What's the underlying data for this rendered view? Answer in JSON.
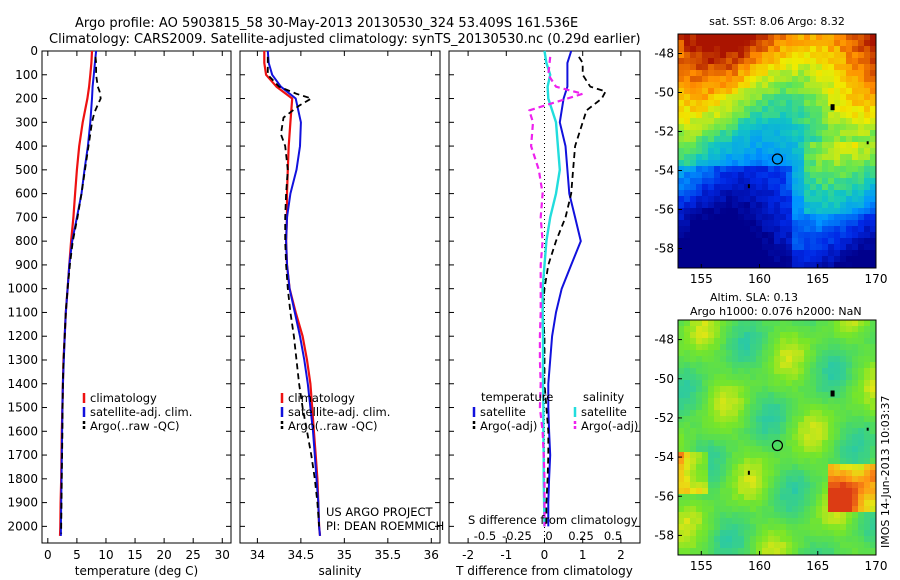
{
  "header": {
    "title_line1": "Argo profile: AO 5903815_58 30-May-2013 20130530_324 53.409S 161.536E",
    "title_line2": "Climatology: CARS2009. Satellite-adjusted climatology: synTS_20130530.nc (0.29d earlier)"
  },
  "colors": {
    "climatology": "#ee1111",
    "satellite": "#1111dd",
    "argo": "#000000",
    "sal_satellite": "#22dddd",
    "sal_argo": "#ee22ee"
  },
  "chart_data": [
    {
      "type": "line",
      "id": "temperature",
      "xlabel": "temperature (deg C)",
      "xlim": [
        -1,
        31.5
      ],
      "xticks": [
        0,
        5,
        10,
        15,
        20,
        25,
        30
      ],
      "ylim": [
        2070,
        0
      ],
      "yticks": [
        0,
        100,
        200,
        300,
        400,
        500,
        600,
        700,
        800,
        900,
        1000,
        1100,
        1200,
        1300,
        1400,
        1500,
        1600,
        1700,
        1800,
        1900,
        2000
      ],
      "legend": [
        "climatology",
        "satellite-adj. clim.",
        "Argo(..raw -QC)"
      ],
      "series": [
        {
          "name": "climatology",
          "depth": [
            0,
            50,
            100,
            150,
            200,
            300,
            400,
            500,
            600,
            700,
            800,
            900,
            1000,
            1100,
            1200,
            1300,
            1400,
            1500,
            1600,
            1700,
            1800,
            1900,
            2000,
            2040
          ],
          "values": [
            7.6,
            7.5,
            7.3,
            7.1,
            6.8,
            6.0,
            5.4,
            5.0,
            4.7,
            4.4,
            4.0,
            3.7,
            3.4,
            3.1,
            2.9,
            2.7,
            2.6,
            2.5,
            2.4,
            2.35,
            2.3,
            2.2,
            2.15,
            2.1
          ]
        },
        {
          "name": "satellite-adj. clim.",
          "depth": [
            0,
            50,
            100,
            150,
            200,
            300,
            400,
            500,
            600,
            700,
            800,
            900,
            1000,
            1100,
            1200,
            1300,
            1400,
            1500,
            1600,
            1700,
            1800,
            1900,
            2000,
            2040
          ],
          "values": [
            8.3,
            8.1,
            7.9,
            7.7,
            7.6,
            7.3,
            6.9,
            6.3,
            5.8,
            5.0,
            4.2,
            3.7,
            3.4,
            3.1,
            2.9,
            2.75,
            2.6,
            2.5,
            2.45,
            2.4,
            2.35,
            2.3,
            2.25,
            2.25
          ]
        },
        {
          "name": "Argo(..raw -QC)",
          "depth": [
            25,
            50,
            100,
            150,
            170,
            200,
            220,
            260,
            300,
            400,
            500,
            600,
            700,
            800,
            900,
            1000,
            1100,
            1200,
            1300,
            1400,
            1500,
            1600,
            1700,
            1800,
            1900,
            2000,
            2030
          ],
          "values": [
            8.2,
            8.3,
            8.3,
            8.6,
            8.9,
            9.1,
            8.7,
            8.0,
            7.6,
            7.0,
            6.4,
            5.8,
            5.1,
            4.3,
            3.8,
            3.4,
            3.1,
            2.9,
            2.7,
            2.6,
            2.55,
            2.5,
            2.45,
            2.4,
            2.35,
            2.3,
            2.3
          ]
        }
      ]
    },
    {
      "type": "line",
      "id": "salinity",
      "xlabel": "salinity",
      "xlim": [
        33.8,
        36.1
      ],
      "xticks": [
        34,
        34.5,
        35,
        35.5,
        36
      ],
      "ylim": [
        2070,
        0
      ],
      "legend": [
        "climatology",
        "satellite-adj. clim.",
        "Argo(..raw -QC)"
      ],
      "annotation": [
        "US ARGO PROJECT",
        "PI: DEAN ROEMMICH"
      ],
      "series": [
        {
          "name": "climatology",
          "depth": [
            0,
            50,
            100,
            150,
            200,
            300,
            400,
            500,
            600,
            700,
            800,
            900,
            1000,
            1100,
            1200,
            1300,
            1400,
            1500,
            1600,
            1700,
            1800,
            1900,
            2000,
            2040
          ],
          "values": [
            34.08,
            34.08,
            34.1,
            34.22,
            34.4,
            34.38,
            34.36,
            34.35,
            34.34,
            34.34,
            34.33,
            34.34,
            34.37,
            34.44,
            34.52,
            34.57,
            34.61,
            34.63,
            34.65,
            34.67,
            34.69,
            34.7,
            34.71,
            34.72
          ]
        },
        {
          "name": "satellite-adj. clim.",
          "depth": [
            0,
            50,
            100,
            150,
            200,
            300,
            400,
            500,
            600,
            700,
            800,
            900,
            1000,
            1100,
            1200,
            1300,
            1400,
            1500,
            1600,
            1700,
            1800,
            1900,
            2000,
            2040
          ],
          "values": [
            34.12,
            34.13,
            34.17,
            34.27,
            34.44,
            34.5,
            34.49,
            34.45,
            34.38,
            34.34,
            34.33,
            34.34,
            34.37,
            34.43,
            34.49,
            34.54,
            34.58,
            34.61,
            34.64,
            34.66,
            34.68,
            34.7,
            34.71,
            34.72
          ]
        },
        {
          "name": "Argo(..raw -QC)",
          "depth": [
            25,
            100,
            150,
            180,
            200,
            230,
            280,
            350,
            400,
            500,
            600,
            700,
            800,
            900,
            1000,
            1100,
            1200,
            1300,
            1400,
            1500,
            1600,
            1700,
            1800,
            1900,
            2000
          ],
          "values": [
            34.12,
            34.12,
            34.25,
            34.45,
            34.62,
            34.48,
            34.3,
            34.27,
            34.32,
            34.35,
            34.33,
            34.32,
            34.32,
            34.33,
            34.35,
            34.38,
            34.42,
            34.45,
            34.48,
            34.52,
            34.57,
            34.62,
            34.66,
            34.69,
            34.71
          ]
        }
      ]
    },
    {
      "type": "line",
      "id": "differences",
      "xlabel": "T difference from climatology",
      "xlabel_top": "S difference from climatology",
      "xlim": [
        -2.5,
        2.5
      ],
      "xticks": [
        -2,
        -1,
        0,
        1,
        2
      ],
      "s_ticks": [
        "-0.5",
        "-0.25",
        "0",
        "0.25",
        "0.5"
      ],
      "ylim": [
        2070,
        0
      ],
      "legend_headers": [
        "temperature",
        "salinity"
      ],
      "legend": [
        "satellite",
        "Argo(-adj)",
        "satellite",
        "Argo(-adj)"
      ],
      "series": [
        {
          "name": "temperature satellite",
          "depth": [
            0,
            50,
            100,
            150,
            200,
            300,
            400,
            500,
            600,
            700,
            800,
            900,
            1000,
            1100,
            1200,
            1300,
            1400,
            1500,
            1600,
            1700,
            1800,
            1900,
            2000
          ],
          "values": [
            0.7,
            0.6,
            0.6,
            0.6,
            0.5,
            0.4,
            0.55,
            0.6,
            0.65,
            0.8,
            0.95,
            0.7,
            0.45,
            0.3,
            0.2,
            0.15,
            0.1,
            0.1,
            0.12,
            0.15,
            0.12,
            0.1,
            0.1
          ]
        },
        {
          "name": "temperature Argo(-adj)",
          "depth": [
            25,
            50,
            100,
            150,
            170,
            200,
            250,
            300,
            400,
            500,
            600,
            700,
            800,
            900,
            1000,
            1100,
            1200,
            1300,
            1400,
            1500,
            1600,
            1700,
            1800,
            1900,
            2000
          ],
          "values": [
            0.9,
            1.0,
            1.0,
            1.2,
            1.6,
            1.5,
            1.1,
            1.0,
            0.8,
            0.75,
            0.7,
            0.55,
            0.3,
            0.1,
            0.0,
            -0.05,
            0.0,
            0.0,
            0.0,
            0.05,
            0.1,
            0.1,
            0.08,
            0.05,
            0.05
          ]
        },
        {
          "name": "salinity satellite",
          "depth": [
            0,
            50,
            100,
            150,
            200,
            300,
            400,
            500,
            600,
            700,
            800,
            900,
            1000,
            1100,
            1200,
            1300,
            1400,
            1500,
            1600,
            1700,
            1800,
            1900,
            2000
          ],
          "values": [
            0.0,
            0.05,
            0.15,
            0.08,
            0.1,
            0.3,
            0.35,
            0.4,
            0.3,
            0.15,
            0.05,
            0.0,
            -0.05,
            -0.05,
            -0.04,
            -0.04,
            -0.04,
            -0.03,
            -0.03,
            -0.02,
            -0.02,
            -0.01,
            0.0
          ]
        },
        {
          "name": "salinity Argo(-adj)",
          "depth": [
            25,
            100,
            150,
            180,
            200,
            250,
            300,
            400,
            500,
            600,
            700,
            800,
            900,
            1000,
            1100,
            1200,
            1300,
            1400,
            1500,
            1600,
            1700,
            1800,
            1900,
            2000
          ],
          "values": [
            0.15,
            0.1,
            0.3,
            1.0,
            0.6,
            -0.4,
            -0.3,
            -0.35,
            -0.15,
            -0.05,
            -0.1,
            -0.05,
            -0.1,
            -0.1,
            -0.1,
            -0.12,
            -0.12,
            -0.1,
            -0.12,
            -0.05,
            -0.02,
            0.0,
            0.0,
            0.0
          ]
        }
      ]
    },
    {
      "type": "heatmap",
      "id": "sst-map",
      "title": "sat. SST: 8.06 Argo: 8.32",
      "xlim": [
        153,
        170
      ],
      "ylim": [
        -59,
        -47
      ],
      "xticks": [
        155,
        160,
        165,
        170
      ],
      "yticks": [
        -48,
        -50,
        -52,
        -54,
        -56,
        -58
      ],
      "marker": [
        161.536,
        -53.409
      ]
    },
    {
      "type": "heatmap",
      "id": "sla-map",
      "title_line1": "Altim. SLA: 0.13",
      "title_line2": "Argo h1000: 0.076 h2000: NaN",
      "xlim": [
        153,
        170
      ],
      "ylim": [
        -59,
        -47
      ],
      "xticks": [
        155,
        160,
        165,
        170
      ],
      "yticks": [
        -48,
        -50,
        -52,
        -54,
        -56,
        -58
      ],
      "marker": [
        161.536,
        -53.409
      ],
      "side_label": "IMOS 14-Jun-2013 10:03:37"
    }
  ]
}
